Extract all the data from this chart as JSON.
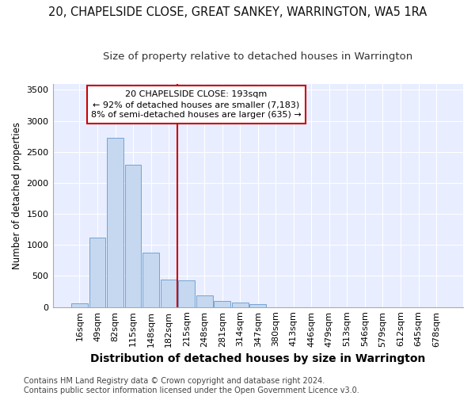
{
  "title_line1": "20, CHAPELSIDE CLOSE, GREAT SANKEY, WARRINGTON, WA5 1RA",
  "title_line2": "Size of property relative to detached houses in Warrington",
  "xlabel": "Distribution of detached houses by size in Warrington",
  "ylabel": "Number of detached properties",
  "categories": [
    "16sqm",
    "49sqm",
    "82sqm",
    "115sqm",
    "148sqm",
    "182sqm",
    "215sqm",
    "248sqm",
    "281sqm",
    "314sqm",
    "347sqm",
    "380sqm",
    "413sqm",
    "446sqm",
    "479sqm",
    "513sqm",
    "546sqm",
    "579sqm",
    "612sqm",
    "645sqm",
    "678sqm"
  ],
  "values": [
    55,
    1120,
    2730,
    2290,
    880,
    440,
    425,
    185,
    100,
    70,
    50,
    0,
    0,
    0,
    0,
    0,
    0,
    0,
    0,
    0,
    0
  ],
  "bar_color": "#c5d8f0",
  "bar_edge_color": "#6699cc",
  "vline_x": 5.5,
  "vline_color": "#cc0000",
  "annotation_text": "20 CHAPELSIDE CLOSE: 193sqm\n← 92% of detached houses are smaller (7,183)\n8% of semi-detached houses are larger (635) →",
  "annotation_box_color": "#cc0000",
  "ylim": [
    0,
    3600
  ],
  "yticks": [
    0,
    500,
    1000,
    1500,
    2000,
    2500,
    3000,
    3500
  ],
  "background_color": "#e8eeff",
  "grid_color": "#ffffff",
  "footer": "Contains HM Land Registry data © Crown copyright and database right 2024.\nContains public sector information licensed under the Open Government Licence v3.0.",
  "title_fontsize": 10.5,
  "subtitle_fontsize": 9.5,
  "xlabel_fontsize": 10,
  "ylabel_fontsize": 8.5,
  "tick_fontsize": 8,
  "annotation_fontsize": 8,
  "footer_fontsize": 7
}
